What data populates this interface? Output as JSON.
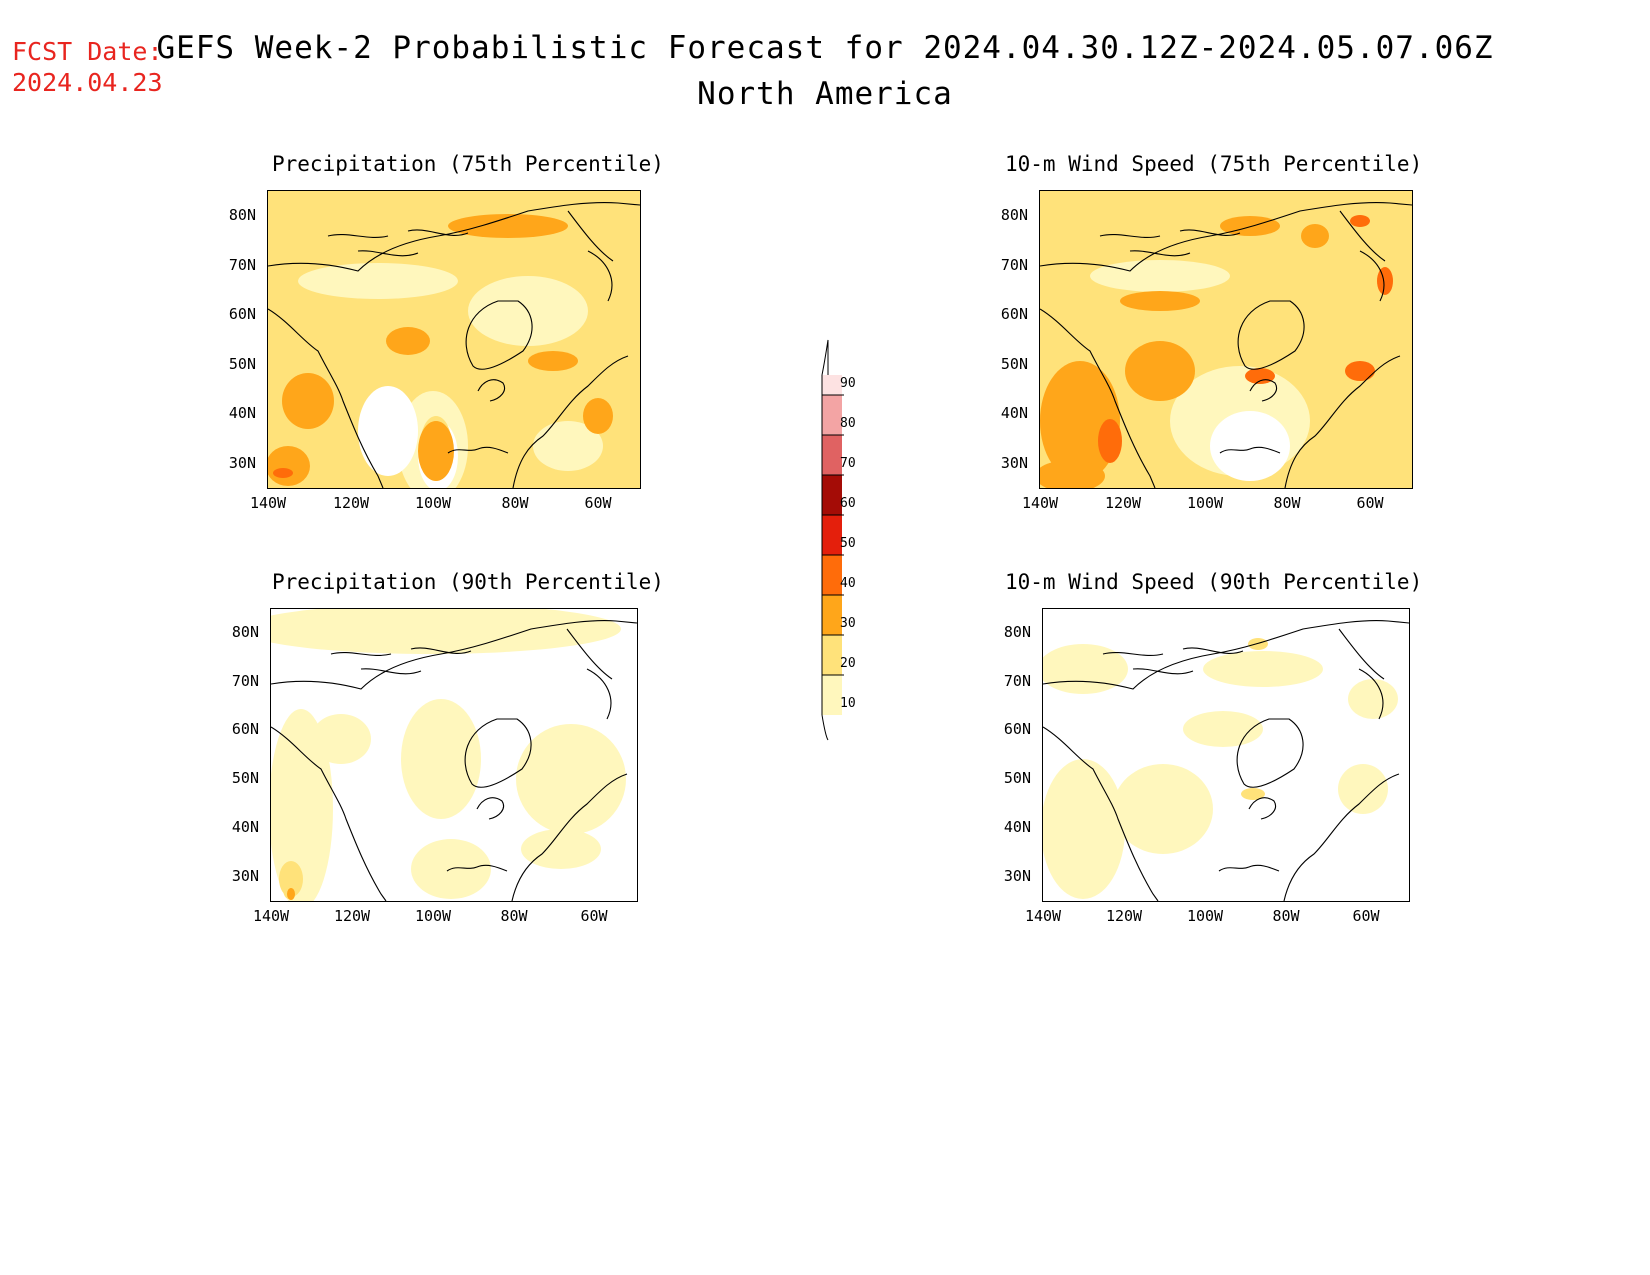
{
  "fcst": {
    "line1": "FCST Date:",
    "line2": "2024.04.23"
  },
  "title": "GEFS Week-2 Probabilistic Forecast for 2024.04.30.12Z-2024.05.07.06Z",
  "subtitle": "North America",
  "colors": {
    "level_10": "#fff7bd",
    "level_20": "#ffe27a",
    "level_30": "#ffa61a",
    "level_40": "#ff6c0a",
    "level_50": "#e41f0c",
    "level_60": "#a40c06",
    "level_70": "#e06262",
    "level_80": "#f3a4a4",
    "level_90": "#fde2e2",
    "coast": "#000000",
    "fcst_text": "#e8251f"
  },
  "chart_data": [
    {
      "type": "map",
      "title": "Precipitation (75th Percentile)",
      "lon_ticks": [
        "140W",
        "120W",
        "100W",
        "80W",
        "60W"
      ],
      "lat_ticks": [
        "80N",
        "70N",
        "60N",
        "50N",
        "40N",
        "30N"
      ],
      "extent": {
        "lon": [
          -140,
          -50
        ],
        "lat": [
          25,
          85
        ]
      },
      "dominant_level": 20
    },
    {
      "type": "map",
      "title": "10-m Wind Speed (75th Percentile)",
      "lon_ticks": [
        "140W",
        "120W",
        "100W",
        "80W",
        "60W"
      ],
      "lat_ticks": [
        "80N",
        "70N",
        "60N",
        "50N",
        "40N",
        "30N"
      ],
      "extent": {
        "lon": [
          -140,
          -50
        ],
        "lat": [
          25,
          85
        ]
      },
      "dominant_level": 20
    },
    {
      "type": "map",
      "title": "Precipitation (90th Percentile)",
      "lon_ticks": [
        "140W",
        "120W",
        "100W",
        "80W",
        "60W"
      ],
      "lat_ticks": [
        "80N",
        "70N",
        "60N",
        "50N",
        "40N",
        "30N"
      ],
      "extent": {
        "lon": [
          -140,
          -50
        ],
        "lat": [
          25,
          85
        ]
      },
      "dominant_level": 0
    },
    {
      "type": "map",
      "title": "10-m Wind Speed (90th Percentile)",
      "lon_ticks": [
        "140W",
        "120W",
        "100W",
        "80W",
        "60W"
      ],
      "lat_ticks": [
        "80N",
        "70N",
        "60N",
        "50N",
        "40N",
        "30N"
      ],
      "extent": {
        "lon": [
          -140,
          -50
        ],
        "lat": [
          25,
          85
        ]
      },
      "dominant_level": 0
    }
  ],
  "colorbar": {
    "levels": [
      "10",
      "20",
      "30",
      "40",
      "50",
      "60",
      "70",
      "80",
      "90"
    ]
  }
}
